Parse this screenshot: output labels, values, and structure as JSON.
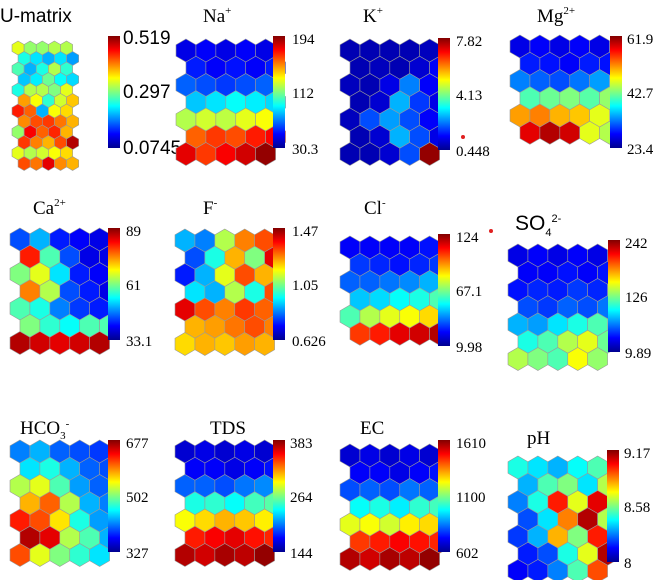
{
  "chart_data": [
    {
      "type": "heatmap",
      "title": "U-matrix",
      "colorbar_ticks": [
        "0.519",
        "0.297",
        "0.0745"
      ],
      "grid": [
        [
          0.6,
          0.52,
          0.52,
          0.55,
          0.55
        ],
        [
          0.4,
          0.35,
          0.3,
          0.35,
          0.28
        ],
        [
          0.45,
          0.3,
          0.4,
          0.55,
          0.42
        ],
        [
          0.32,
          0.36,
          0.48,
          0.38,
          0.34
        ],
        [
          0.4,
          0.55,
          0.55,
          0.5,
          0.6
        ],
        [
          0.72,
          0.62,
          0.42,
          0.58,
          0.68
        ],
        [
          0.85,
          0.78,
          0.3,
          0.62,
          0.66
        ],
        [
          0.74,
          0.8,
          0.82,
          0.76,
          0.7
        ],
        [
          0.52,
          0.88,
          0.78,
          0.84,
          0.7
        ],
        [
          0.82,
          0.75,
          0.7,
          0.8,
          0.95
        ],
        [
          0.6,
          0.55,
          0.58,
          0.62,
          0.66
        ],
        [
          0.8,
          0.76,
          0.9,
          0.74,
          0.7
        ]
      ]
    },
    {
      "type": "heatmap",
      "title": "Na",
      "title_sup": "+",
      "colorbar_ticks": [
        "194",
        "112",
        "30.3"
      ],
      "grid": [
        [
          0.1,
          0.12,
          0.1,
          0.12,
          0.1
        ],
        [
          0.15,
          0.12,
          0.14,
          0.12,
          0.15
        ],
        [
          0.22,
          0.2,
          0.18,
          0.2,
          0.22
        ],
        [
          0.32,
          0.35,
          0.38,
          0.36,
          0.34
        ],
        [
          0.55,
          0.58,
          0.56,
          0.6,
          0.62
        ],
        [
          0.78,
          0.82,
          0.8,
          0.85,
          0.88
        ],
        [
          0.9,
          0.82,
          0.88,
          0.92,
          0.98
        ]
      ]
    },
    {
      "type": "heatmap",
      "title": "K",
      "title_sup": "+",
      "colorbar_ticks": [
        "7.82",
        "4.13",
        "0.448"
      ],
      "grid": [
        [
          0.05,
          0.05,
          0.05,
          0.05,
          0.06
        ],
        [
          0.05,
          0.06,
          0.05,
          0.08,
          0.12
        ],
        [
          0.06,
          0.05,
          0.1,
          0.25,
          0.12
        ],
        [
          0.05,
          0.08,
          0.3,
          0.18,
          0.1
        ],
        [
          0.06,
          0.2,
          0.28,
          0.2,
          0.12
        ],
        [
          0.05,
          0.08,
          0.3,
          0.2,
          0.1
        ],
        [
          0.05,
          0.05,
          0.08,
          0.2,
          0.98
        ]
      ]
    },
    {
      "type": "heatmap",
      "title": "Mg",
      "title_sup": "2+",
      "colorbar_ticks": [
        "61.9",
        "42.7",
        "23.4"
      ],
      "grid": [
        [
          0.1,
          0.12,
          0.1,
          0.12,
          0.1
        ],
        [
          0.15,
          0.14,
          0.12,
          0.15,
          0.14
        ],
        [
          0.25,
          0.22,
          0.2,
          0.24,
          0.28
        ],
        [
          0.45,
          0.48,
          0.5,
          0.46,
          0.52
        ],
        [
          0.72,
          0.75,
          0.7,
          0.68,
          0.6
        ],
        [
          0.9,
          0.95,
          0.92,
          0.6,
          0.55
        ]
      ]
    },
    {
      "type": "heatmap",
      "title": "Ca",
      "title_sup": "2+",
      "colorbar_ticks": [
        "89",
        "61",
        "33.1"
      ],
      "grid": [
        [
          0.2,
          0.3,
          0.15,
          0.12,
          0.1
        ],
        [
          0.85,
          0.45,
          0.2,
          0.1,
          0.1
        ],
        [
          0.5,
          0.6,
          0.35,
          0.15,
          0.12
        ],
        [
          0.75,
          0.55,
          0.2,
          0.15,
          0.1
        ],
        [
          0.45,
          0.4,
          0.25,
          0.18,
          0.15
        ],
        [
          0.5,
          0.42,
          0.38,
          0.45,
          0.45
        ],
        [
          0.95,
          0.92,
          0.9,
          0.92,
          0.95
        ]
      ]
    },
    {
      "type": "heatmap",
      "title": "F",
      "title_sup": "-",
      "colorbar_ticks": [
        "1.47",
        "1.05",
        "0.626"
      ],
      "grid": [
        [
          0.3,
          0.25,
          0.55,
          0.75,
          0.8
        ],
        [
          0.2,
          0.4,
          0.7,
          0.5,
          0.9
        ],
        [
          0.15,
          0.3,
          0.6,
          0.8,
          0.7
        ],
        [
          0.35,
          0.3,
          0.55,
          0.4,
          0.8
        ],
        [
          0.9,
          0.8,
          0.75,
          0.82,
          0.78
        ],
        [
          0.7,
          0.72,
          0.76,
          0.8,
          0.75
        ],
        [
          0.66,
          0.7,
          0.68,
          0.72,
          0.7
        ]
      ]
    },
    {
      "type": "heatmap",
      "title": "Cl",
      "title_sup": "-",
      "colorbar_ticks": [
        "124",
        "67.1",
        "9.98"
      ],
      "grid": [
        [
          0.12,
          0.12,
          0.12,
          0.12,
          0.14
        ],
        [
          0.18,
          0.16,
          0.14,
          0.16,
          0.18
        ],
        [
          0.22,
          0.22,
          0.24,
          0.26,
          0.3
        ],
        [
          0.32,
          0.34,
          0.38,
          0.4,
          0.45
        ],
        [
          0.45,
          0.55,
          0.6,
          0.62,
          0.66
        ],
        [
          0.82,
          0.85,
          0.9,
          0.92,
          0.95
        ]
      ]
    },
    {
      "type": "heatmap",
      "title": "SO",
      "title_sub": "4",
      "title_sup": "2-",
      "colorbar_ticks": [
        "242",
        "126",
        "9.89"
      ],
      "grid": [
        [
          0.1,
          0.12,
          0.1,
          0.12,
          0.1
        ],
        [
          0.12,
          0.12,
          0.14,
          0.12,
          0.14
        ],
        [
          0.14,
          0.16,
          0.15,
          0.18,
          0.16
        ],
        [
          0.2,
          0.18,
          0.22,
          0.2,
          0.24
        ],
        [
          0.3,
          0.28,
          0.35,
          0.4,
          0.45
        ],
        [
          0.4,
          0.45,
          0.55,
          0.6,
          0.48
        ],
        [
          0.55,
          0.5,
          0.45,
          0.62,
          0.52
        ]
      ]
    },
    {
      "type": "heatmap",
      "title": "HCO",
      "title_sub": "3",
      "title_sup": "-",
      "colorbar_ticks": [
        "677",
        "502",
        "327"
      ],
      "grid": [
        [
          0.25,
          0.3,
          0.22,
          0.2,
          0.18
        ],
        [
          0.35,
          0.4,
          0.3,
          0.22,
          0.2
        ],
        [
          0.55,
          0.6,
          0.45,
          0.28,
          0.22
        ],
        [
          0.7,
          0.78,
          0.55,
          0.3,
          0.25
        ],
        [
          0.85,
          0.8,
          0.65,
          0.4,
          0.28
        ],
        [
          0.95,
          0.9,
          0.55,
          0.45,
          0.3
        ],
        [
          0.8,
          0.6,
          0.5,
          0.42,
          0.35
        ]
      ]
    },
    {
      "type": "heatmap",
      "title": "TDS",
      "colorbar_ticks": [
        "383",
        "264",
        "144"
      ],
      "grid": [
        [
          0.08,
          0.1,
          0.08,
          0.1,
          0.08
        ],
        [
          0.12,
          0.12,
          0.1,
          0.12,
          0.14
        ],
        [
          0.22,
          0.22,
          0.2,
          0.24,
          0.26
        ],
        [
          0.4,
          0.42,
          0.38,
          0.44,
          0.46
        ],
        [
          0.62,
          0.66,
          0.7,
          0.68,
          0.64
        ],
        [
          0.85,
          0.88,
          0.9,
          0.86,
          0.84
        ],
        [
          0.95,
          0.92,
          0.96,
          0.94,
          0.98
        ]
      ]
    },
    {
      "type": "heatmap",
      "title": "EC",
      "colorbar_ticks": [
        "1610",
        "1100",
        "602"
      ],
      "grid": [
        [
          0.08,
          0.1,
          0.08,
          0.1,
          0.08
        ],
        [
          0.12,
          0.12,
          0.1,
          0.12,
          0.14
        ],
        [
          0.2,
          0.22,
          0.2,
          0.24,
          0.22
        ],
        [
          0.38,
          0.4,
          0.36,
          0.42,
          0.44
        ],
        [
          0.6,
          0.62,
          0.58,
          0.64,
          0.66
        ],
        [
          0.82,
          0.85,
          0.88,
          0.86,
          0.84
        ],
        [
          0.95,
          0.92,
          0.96,
          0.94,
          0.98
        ]
      ]
    },
    {
      "type": "heatmap",
      "title": "pH",
      "colorbar_ticks": [
        "9.17",
        "8.58",
        "8"
      ],
      "grid": [
        [
          0.4,
          0.35,
          0.3,
          0.38,
          0.45
        ],
        [
          0.3,
          0.45,
          0.5,
          0.35,
          0.55
        ],
        [
          0.25,
          0.4,
          0.85,
          0.6,
          0.9
        ],
        [
          0.2,
          0.35,
          0.75,
          0.95,
          0.55
        ],
        [
          0.18,
          0.3,
          0.7,
          0.5,
          0.85
        ],
        [
          0.15,
          0.2,
          0.4,
          0.6,
          0.95
        ],
        [
          0.12,
          0.15,
          0.25,
          0.45,
          0.8
        ]
      ]
    }
  ]
}
